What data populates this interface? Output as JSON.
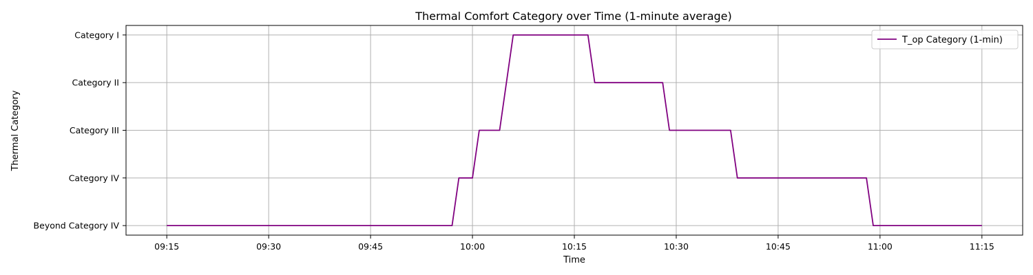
{
  "chart_data": {
    "type": "line",
    "title": "Thermal Comfort Category over Time (1-minute average)",
    "xlabel": "Time",
    "ylabel": "Thermal Category",
    "x_ticks": [
      "09:15",
      "09:30",
      "09:45",
      "10:00",
      "10:15",
      "10:30",
      "10:45",
      "11:00",
      "11:15"
    ],
    "y_categories": [
      "Beyond Category IV",
      "Category IV",
      "Category III",
      "Category II",
      "Category I"
    ],
    "xlim": [
      "09:09",
      "11:21"
    ],
    "ylim": [
      -0.2,
      4.2
    ],
    "grid": true,
    "legend_position": "top-right",
    "series": [
      {
        "name": "T_op Category (1-min)",
        "color": "#800080",
        "points": [
          [
            "09:15",
            0
          ],
          [
            "09:57",
            0
          ],
          [
            "09:58",
            1
          ],
          [
            "10:00",
            1
          ],
          [
            "10:01",
            2
          ],
          [
            "10:04",
            2
          ],
          [
            "10:06",
            4
          ],
          [
            "10:17",
            4
          ],
          [
            "10:18",
            3
          ],
          [
            "10:28",
            3
          ],
          [
            "10:29",
            2
          ],
          [
            "10:38",
            2
          ],
          [
            "10:39",
            1
          ],
          [
            "10:58",
            1
          ],
          [
            "10:59",
            0
          ],
          [
            "11:15",
            0
          ]
        ]
      }
    ]
  }
}
